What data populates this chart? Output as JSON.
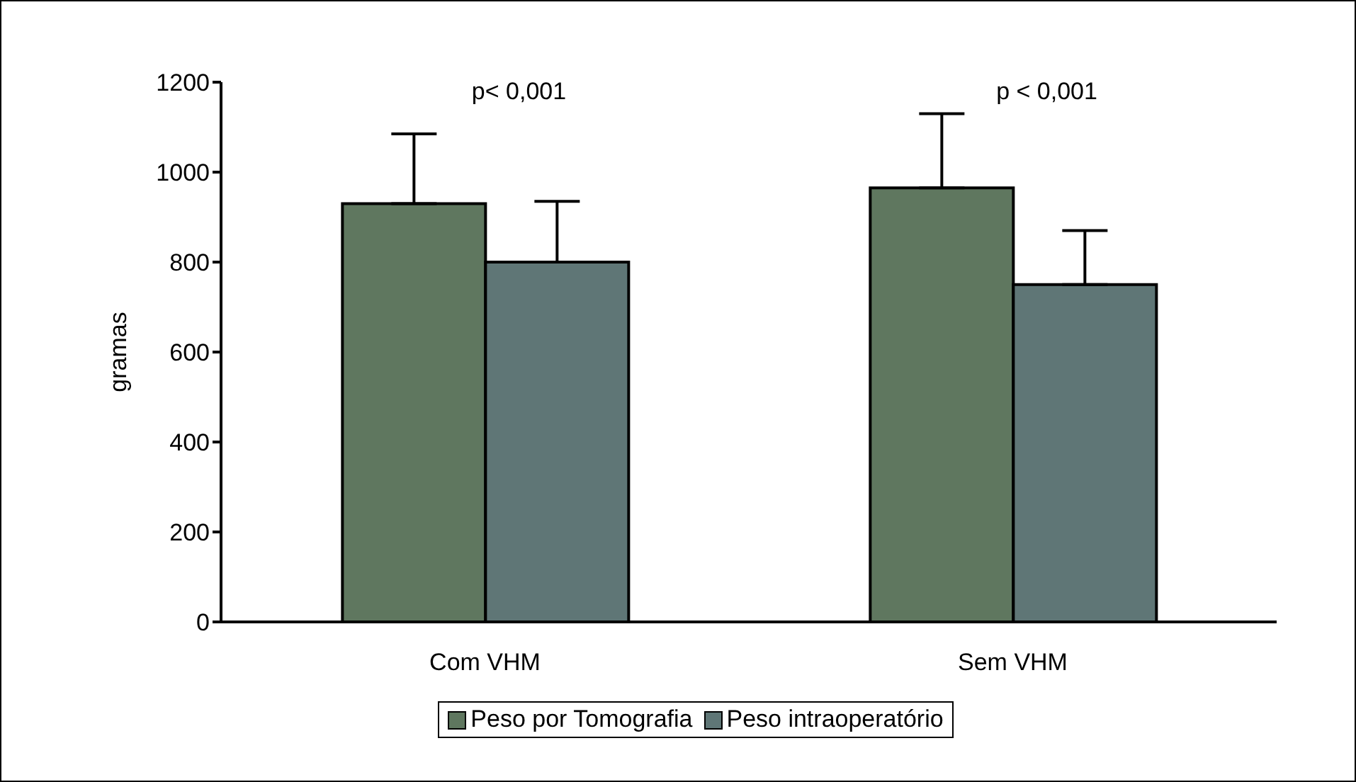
{
  "chart_data": {
    "type": "bar",
    "ylabel": "gramas",
    "categories": [
      "Com VHM",
      "Sem VHM"
    ],
    "series": [
      {
        "name": "Peso por Tomografia",
        "color": "#5f775f",
        "values": [
          930,
          965
        ],
        "errors": [
          [
            930,
            1085
          ],
          [
            965,
            1130
          ]
        ]
      },
      {
        "name": "Peso intraoperatório",
        "color": "#5f7676",
        "values": [
          800,
          750
        ],
        "errors": [
          [
            800,
            935
          ],
          [
            750,
            870
          ]
        ]
      }
    ],
    "annotations": [
      "p< 0,001",
      "p < 0,001"
    ],
    "ylim": [
      0,
      1200
    ],
    "yticks": [
      0,
      200,
      400,
      600,
      800,
      1000,
      1200
    ],
    "grid": false,
    "legend": "bottom"
  }
}
